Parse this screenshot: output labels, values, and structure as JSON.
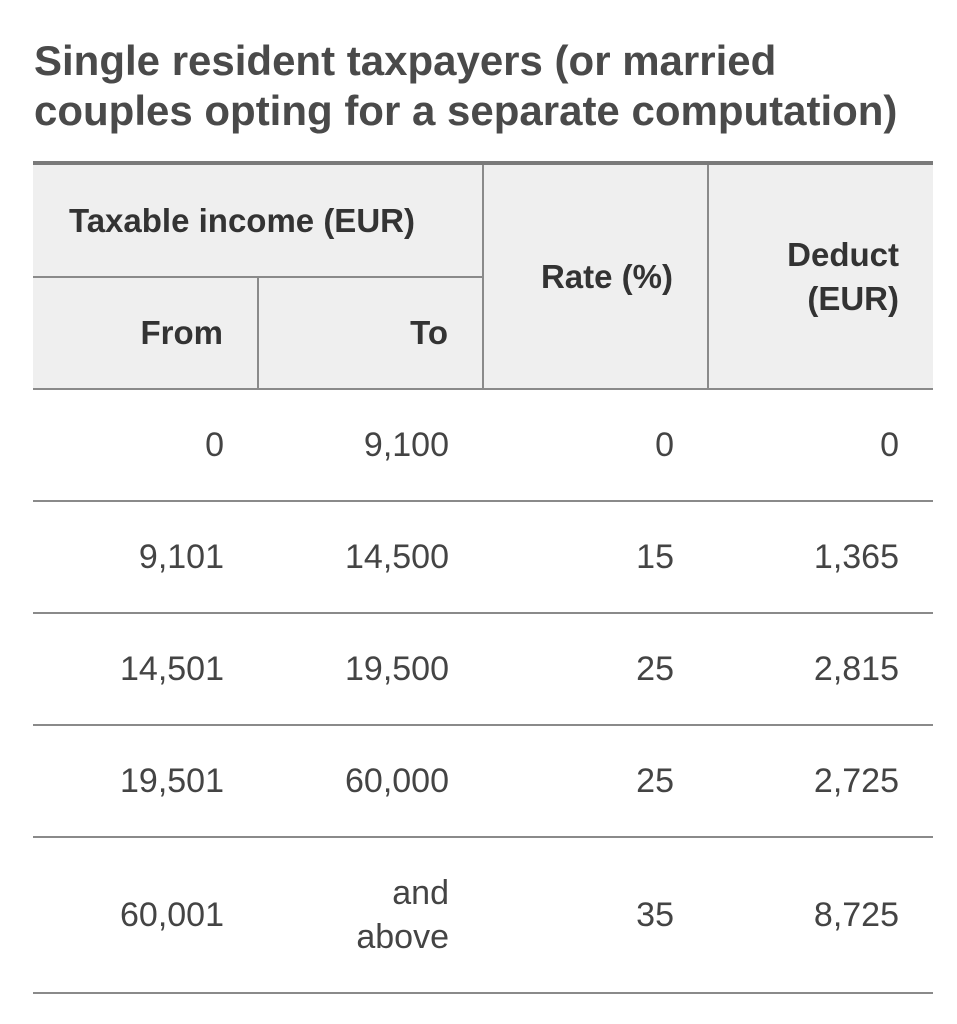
{
  "title": {
    "line1": "Single resident taxpayers (or married",
    "line2": "couples opting for a separate computation)"
  },
  "table": {
    "header": {
      "group": "Taxable income (EUR)",
      "from": "From",
      "to": "To",
      "rate": "Rate (%)",
      "deduct_line1": "Deduct",
      "deduct_line2": "(EUR)"
    },
    "rows": [
      {
        "from": "0",
        "to": "9,100",
        "rate": "0",
        "deduct": "0"
      },
      {
        "from": "9,101",
        "to": "14,500",
        "rate": "15",
        "deduct": "1,365"
      },
      {
        "from": "14,501",
        "to": "19,500",
        "rate": "25",
        "deduct": "2,815"
      },
      {
        "from": "19,501",
        "to": "60,000",
        "rate": "25",
        "deduct": "2,725"
      },
      {
        "from": "60,001",
        "to_line1": "and",
        "to_line2": "above",
        "rate": "35",
        "deduct": "8,725"
      }
    ]
  },
  "colors": {
    "header_background": "#efefef",
    "rule": "#8a8a8a",
    "top_rule": "#7a7a7a",
    "text": "#444444"
  }
}
